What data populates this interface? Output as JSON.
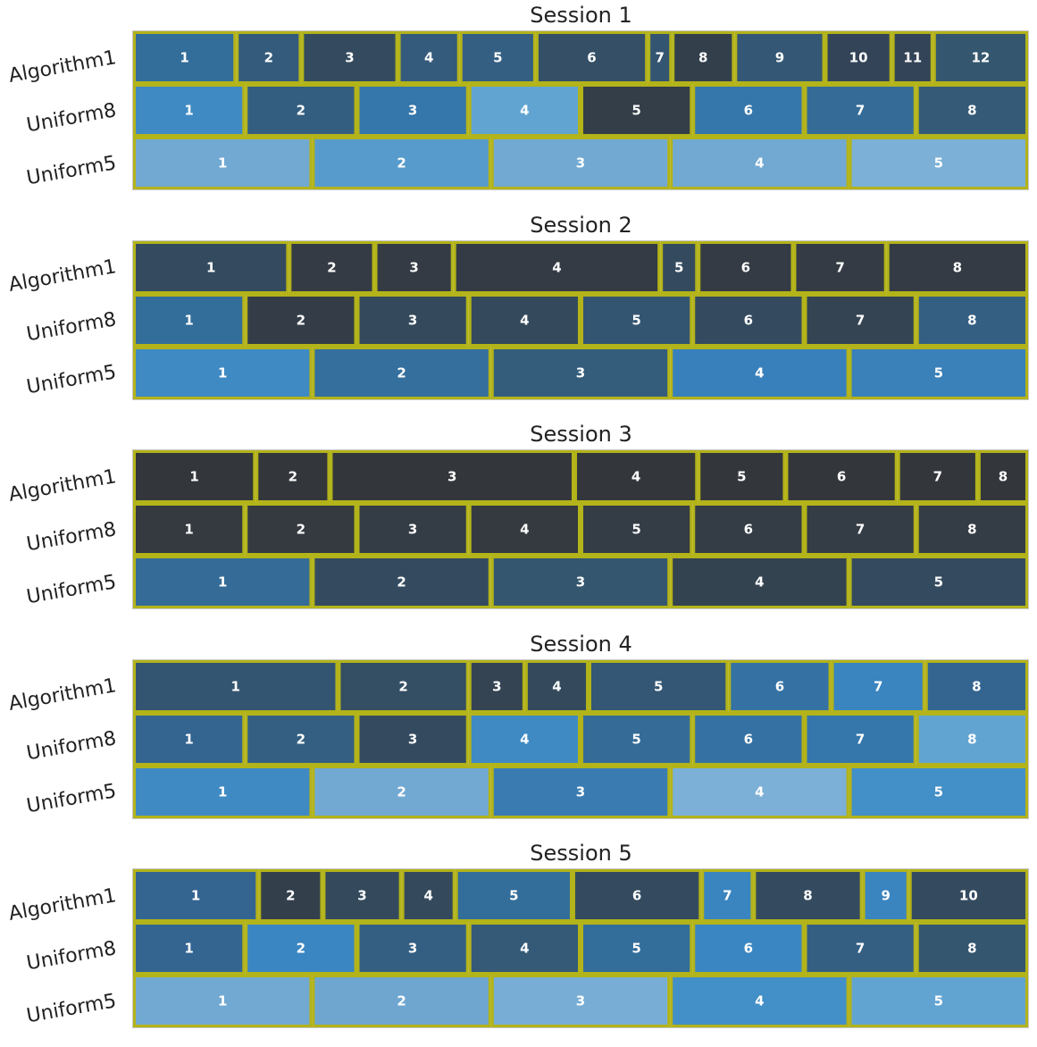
{
  "chart_data": {
    "type": "bar",
    "description_type": "stacked horizontal segments (segmentation comparison)",
    "rows": [
      "Algorithm1",
      "Uniform8",
      "Uniform5"
    ],
    "xlim": [
      0,
      1
    ],
    "edge_color": "#b3b31a",
    "panels": [
      {
        "title": "Session 1",
        "rows": [
          {
            "name": "Algorithm1",
            "segments": [
              {
                "label": "1",
                "width": 0.115,
                "color": "#336d9a"
              },
              {
                "label": "2",
                "width": 0.073,
                "color": "#345b7b"
              },
              {
                "label": "3",
                "width": 0.108,
                "color": "#344b5f"
              },
              {
                "label": "4",
                "width": 0.069,
                "color": "#345b7b"
              },
              {
                "label": "5",
                "width": 0.085,
                "color": "#345f82"
              },
              {
                "label": "6",
                "width": 0.125,
                "color": "#344f66"
              },
              {
                "label": "7",
                "width": 0.027,
                "color": "#345571"
              },
              {
                "label": "8",
                "width": 0.07,
                "color": "#343f4c"
              },
              {
                "label": "9",
                "width": 0.101,
                "color": "#345775"
              },
              {
                "label": "10",
                "width": 0.075,
                "color": "#344458"
              },
              {
                "label": "11",
                "width": 0.046,
                "color": "#344458"
              },
              {
                "label": "12",
                "width": 0.106,
                "color": "#34576f"
              }
            ]
          },
          {
            "name": "Uniform8",
            "segments": [
              {
                "label": "1",
                "width": 0.125,
                "color": "#3f8ac3"
              },
              {
                "label": "2",
                "width": 0.125,
                "color": "#345e7f"
              },
              {
                "label": "3",
                "width": 0.125,
                "color": "#3576ab"
              },
              {
                "label": "4",
                "width": 0.125,
                "color": "#62a4d1"
              },
              {
                "label": "5",
                "width": 0.125,
                "color": "#343e48"
              },
              {
                "label": "6",
                "width": 0.125,
                "color": "#3576ab"
              },
              {
                "label": "7",
                "width": 0.125,
                "color": "#346c97"
              },
              {
                "label": "8",
                "width": 0.125,
                "color": "#345a77"
              }
            ]
          },
          {
            "name": "Uniform5",
            "segments": [
              {
                "label": "1",
                "width": 0.2,
                "color": "#72a9d2"
              },
              {
                "label": "2",
                "width": 0.2,
                "color": "#579bcc"
              },
              {
                "label": "3",
                "width": 0.2,
                "color": "#72a9d2"
              },
              {
                "label": "4",
                "width": 0.2,
                "color": "#72a9d2"
              },
              {
                "label": "5",
                "width": 0.2,
                "color": "#7cb0d6"
              }
            ]
          }
        ]
      },
      {
        "title": "Session 2",
        "rows": [
          {
            "name": "Algorithm1",
            "segments": [
              {
                "label": "1",
                "width": 0.174,
                "color": "#344b5f"
              },
              {
                "label": "2",
                "width": 0.096,
                "color": "#343b44"
              },
              {
                "label": "3",
                "width": 0.088,
                "color": "#343b44"
              },
              {
                "label": "4",
                "width": 0.231,
                "color": "#343b44"
              },
              {
                "label": "5",
                "width": 0.042,
                "color": "#344b5f"
              },
              {
                "label": "6",
                "width": 0.107,
                "color": "#343b44"
              },
              {
                "label": "7",
                "width": 0.104,
                "color": "#343b44"
              },
              {
                "label": "8",
                "width": 0.158,
                "color": "#343b44"
              }
            ]
          },
          {
            "name": "Uniform8",
            "segments": [
              {
                "label": "1",
                "width": 0.125,
                "color": "#336d9a"
              },
              {
                "label": "2",
                "width": 0.125,
                "color": "#343d47"
              },
              {
                "label": "3",
                "width": 0.125,
                "color": "#344a5c"
              },
              {
                "label": "4",
                "width": 0.125,
                "color": "#344a5c"
              },
              {
                "label": "5",
                "width": 0.125,
                "color": "#345571"
              },
              {
                "label": "6",
                "width": 0.125,
                "color": "#344b5f"
              },
              {
                "label": "7",
                "width": 0.125,
                "color": "#344453"
              },
              {
                "label": "8",
                "width": 0.125,
                "color": "#345f82"
              }
            ]
          },
          {
            "name": "Uniform5",
            "segments": [
              {
                "label": "1",
                "width": 0.2,
                "color": "#3f8ac3"
              },
              {
                "label": "2",
                "width": 0.2,
                "color": "#346f9d"
              },
              {
                "label": "3",
                "width": 0.2,
                "color": "#345d7c"
              },
              {
                "label": "4",
                "width": 0.2,
                "color": "#3880bb"
              },
              {
                "label": "5",
                "width": 0.2,
                "color": "#3a80b9"
              }
            ]
          }
        ]
      },
      {
        "title": "Session 3",
        "rows": [
          {
            "name": "Algorithm1",
            "segments": [
              {
                "label": "1",
                "width": 0.137,
                "color": "#33373b"
              },
              {
                "label": "2",
                "width": 0.083,
                "color": "#33373b"
              },
              {
                "label": "3",
                "width": 0.273,
                "color": "#33373b"
              },
              {
                "label": "4",
                "width": 0.138,
                "color": "#33373b"
              },
              {
                "label": "5",
                "width": 0.098,
                "color": "#33373b"
              },
              {
                "label": "6",
                "width": 0.125,
                "color": "#33373b"
              },
              {
                "label": "7",
                "width": 0.09,
                "color": "#33373b"
              },
              {
                "label": "8",
                "width": 0.056,
                "color": "#33373b"
              }
            ]
          },
          {
            "name": "Uniform8",
            "segments": [
              {
                "label": "1",
                "width": 0.125,
                "color": "#343a40"
              },
              {
                "label": "2",
                "width": 0.125,
                "color": "#343a40"
              },
              {
                "label": "3",
                "width": 0.125,
                "color": "#343c45"
              },
              {
                "label": "4",
                "width": 0.125,
                "color": "#343a40"
              },
              {
                "label": "5",
                "width": 0.125,
                "color": "#343c45"
              },
              {
                "label": "6",
                "width": 0.125,
                "color": "#343c45"
              },
              {
                "label": "7",
                "width": 0.125,
                "color": "#343c45"
              },
              {
                "label": "8",
                "width": 0.125,
                "color": "#343c45"
              }
            ]
          },
          {
            "name": "Uniform5",
            "segments": [
              {
                "label": "1",
                "width": 0.2,
                "color": "#346c97"
              },
              {
                "label": "2",
                "width": 0.2,
                "color": "#344b5f"
              },
              {
                "label": "3",
                "width": 0.2,
                "color": "#34576f"
              },
              {
                "label": "4",
                "width": 0.2,
                "color": "#344350"
              },
              {
                "label": "5",
                "width": 0.2,
                "color": "#344b5f"
              }
            ]
          }
        ]
      },
      {
        "title": "Session 4",
        "rows": [
          {
            "name": "Algorithm1",
            "segments": [
              {
                "label": "1",
                "width": 0.229,
                "color": "#345571"
              },
              {
                "label": "2",
                "width": 0.146,
                "color": "#344e64"
              },
              {
                "label": "3",
                "width": 0.063,
                "color": "#344453"
              },
              {
                "label": "4",
                "width": 0.071,
                "color": "#344a5c"
              },
              {
                "label": "5",
                "width": 0.156,
                "color": "#345775"
              },
              {
                "label": "6",
                "width": 0.115,
                "color": "#3572a3"
              },
              {
                "label": "7",
                "width": 0.105,
                "color": "#3a84bf"
              },
              {
                "label": "8",
                "width": 0.115,
                "color": "#346591"
              }
            ]
          },
          {
            "name": "Uniform8",
            "segments": [
              {
                "label": "1",
                "width": 0.125,
                "color": "#336590"
              },
              {
                "label": "2",
                "width": 0.125,
                "color": "#345f82"
              },
              {
                "label": "3",
                "width": 0.125,
                "color": "#344b5f"
              },
              {
                "label": "4",
                "width": 0.125,
                "color": "#3f8ac3"
              },
              {
                "label": "5",
                "width": 0.125,
                "color": "#346c97"
              },
              {
                "label": "6",
                "width": 0.125,
                "color": "#3572a3"
              },
              {
                "label": "7",
                "width": 0.125,
                "color": "#3576ab"
              },
              {
                "label": "8",
                "width": 0.125,
                "color": "#62a4d1"
              }
            ]
          },
          {
            "name": "Uniform5",
            "segments": [
              {
                "label": "1",
                "width": 0.2,
                "color": "#3f8ac3"
              },
              {
                "label": "2",
                "width": 0.2,
                "color": "#72a9d2"
              },
              {
                "label": "3",
                "width": 0.2,
                "color": "#3a7cb2"
              },
              {
                "label": "4",
                "width": 0.2,
                "color": "#7cb0d6"
              },
              {
                "label": "5",
                "width": 0.2,
                "color": "#438fc7"
              }
            ]
          }
        ]
      },
      {
        "title": "Session 5",
        "rows": [
          {
            "name": "Algorithm1",
            "segments": [
              {
                "label": "1",
                "width": 0.14,
                "color": "#346591"
              },
              {
                "label": "2",
                "width": 0.072,
                "color": "#343f4c"
              },
              {
                "label": "3",
                "width": 0.088,
                "color": "#344a5c"
              },
              {
                "label": "4",
                "width": 0.06,
                "color": "#344a5c"
              },
              {
                "label": "5",
                "width": 0.131,
                "color": "#336d9a"
              },
              {
                "label": "6",
                "width": 0.144,
                "color": "#344b5f"
              },
              {
                "label": "7",
                "width": 0.058,
                "color": "#3a84bf"
              },
              {
                "label": "8",
                "width": 0.122,
                "color": "#344b5f"
              },
              {
                "label": "9",
                "width": 0.052,
                "color": "#3a84bf"
              },
              {
                "label": "10",
                "width": 0.133,
                "color": "#344b5f"
              }
            ]
          },
          {
            "name": "Uniform8",
            "segments": [
              {
                "label": "1",
                "width": 0.125,
                "color": "#346591"
              },
              {
                "label": "2",
                "width": 0.125,
                "color": "#3a86c2"
              },
              {
                "label": "3",
                "width": 0.125,
                "color": "#345f82"
              },
              {
                "label": "4",
                "width": 0.125,
                "color": "#345a77"
              },
              {
                "label": "5",
                "width": 0.125,
                "color": "#336d9a"
              },
              {
                "label": "6",
                "width": 0.125,
                "color": "#3a86c2"
              },
              {
                "label": "7",
                "width": 0.125,
                "color": "#345f82"
              },
              {
                "label": "8",
                "width": 0.125,
                "color": "#34566e"
              }
            ]
          },
          {
            "name": "Uniform5",
            "segments": [
              {
                "label": "1",
                "width": 0.2,
                "color": "#72a9d2"
              },
              {
                "label": "2",
                "width": 0.2,
                "color": "#6ea6d0"
              },
              {
                "label": "3",
                "width": 0.2,
                "color": "#78aed5"
              },
              {
                "label": "4",
                "width": 0.2,
                "color": "#438fc7"
              },
              {
                "label": "5",
                "width": 0.2,
                "color": "#62a4d1"
              }
            ]
          }
        ]
      }
    ]
  }
}
